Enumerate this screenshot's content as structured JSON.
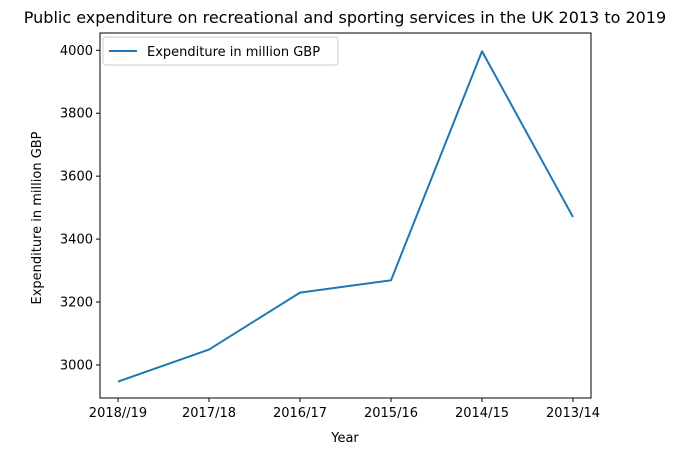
{
  "chart_data": {
    "type": "line",
    "title": "Public expenditure on recreational and sporting services in the UK 2013 to 2019",
    "xlabel": "Year",
    "ylabel": "Expenditure in million GBP",
    "categories": [
      "2018//19",
      "2017/18",
      "2016/17",
      "2015/16",
      "2014/15",
      "2013/14"
    ],
    "series": [
      {
        "name": "Expenditure in million GBP",
        "values": [
          2947,
          3049,
          3230,
          3269,
          3997,
          3470
        ],
        "color": "#1f77b4"
      }
    ],
    "ylim": [
      2895,
      4055
    ],
    "yticks": [
      3000,
      3200,
      3400,
      3600,
      3800,
      4000
    ],
    "grid": false,
    "legend_position": "top-left"
  }
}
